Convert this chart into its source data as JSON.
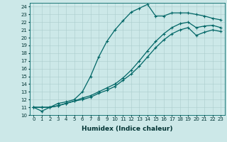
{
  "xlabel": "Humidex (Indice chaleur)",
  "bg_color": "#cce8e8",
  "grid_color": "#aacccc",
  "line_color": "#006666",
  "xlim": [
    -0.5,
    23.5
  ],
  "ylim": [
    10,
    24.5
  ],
  "xticks": [
    0,
    1,
    2,
    3,
    4,
    5,
    6,
    7,
    8,
    9,
    10,
    11,
    12,
    13,
    14,
    15,
    16,
    17,
    18,
    19,
    20,
    21,
    22,
    23
  ],
  "yticks": [
    10,
    11,
    12,
    13,
    14,
    15,
    16,
    17,
    18,
    19,
    20,
    21,
    22,
    23,
    24
  ],
  "curve1_x": [
    0,
    1,
    2,
    3,
    4,
    5,
    6,
    7,
    8,
    9,
    10,
    11,
    12,
    13,
    14,
    15,
    16,
    17,
    18,
    19,
    20,
    21,
    22,
    23
  ],
  "curve1_y": [
    11.0,
    10.5,
    11.0,
    11.5,
    11.7,
    12.0,
    13.0,
    15.0,
    17.5,
    19.5,
    21.0,
    22.2,
    23.3,
    23.8,
    24.3,
    22.8,
    22.8,
    23.2,
    23.2,
    23.2,
    23.0,
    22.8,
    22.5,
    22.3
  ],
  "curve2_x": [
    0,
    1,
    2,
    3,
    4,
    5,
    6,
    7,
    8,
    9,
    10,
    11,
    12,
    13,
    14,
    15,
    16,
    17,
    18,
    19,
    20,
    21,
    22,
    23
  ],
  "curve2_y": [
    11.0,
    11.0,
    11.0,
    11.2,
    11.5,
    11.8,
    12.2,
    12.5,
    13.0,
    13.5,
    14.0,
    14.8,
    15.8,
    17.0,
    18.3,
    19.5,
    20.5,
    21.3,
    21.8,
    22.0,
    21.3,
    21.5,
    21.6,
    21.3
  ],
  "curve3_x": [
    0,
    1,
    2,
    3,
    4,
    5,
    6,
    7,
    8,
    9,
    10,
    11,
    12,
    13,
    14,
    15,
    16,
    17,
    18,
    19,
    20,
    21,
    22,
    23
  ],
  "curve3_y": [
    11.0,
    11.0,
    11.0,
    11.2,
    11.5,
    11.8,
    12.0,
    12.3,
    12.8,
    13.2,
    13.7,
    14.5,
    15.3,
    16.3,
    17.5,
    18.7,
    19.7,
    20.5,
    21.0,
    21.3,
    20.3,
    20.7,
    21.0,
    20.8
  ],
  "marker": "+",
  "markersize": 3,
  "linewidth": 0.9,
  "label_fontsize": 6.5,
  "tick_fontsize": 5.0
}
